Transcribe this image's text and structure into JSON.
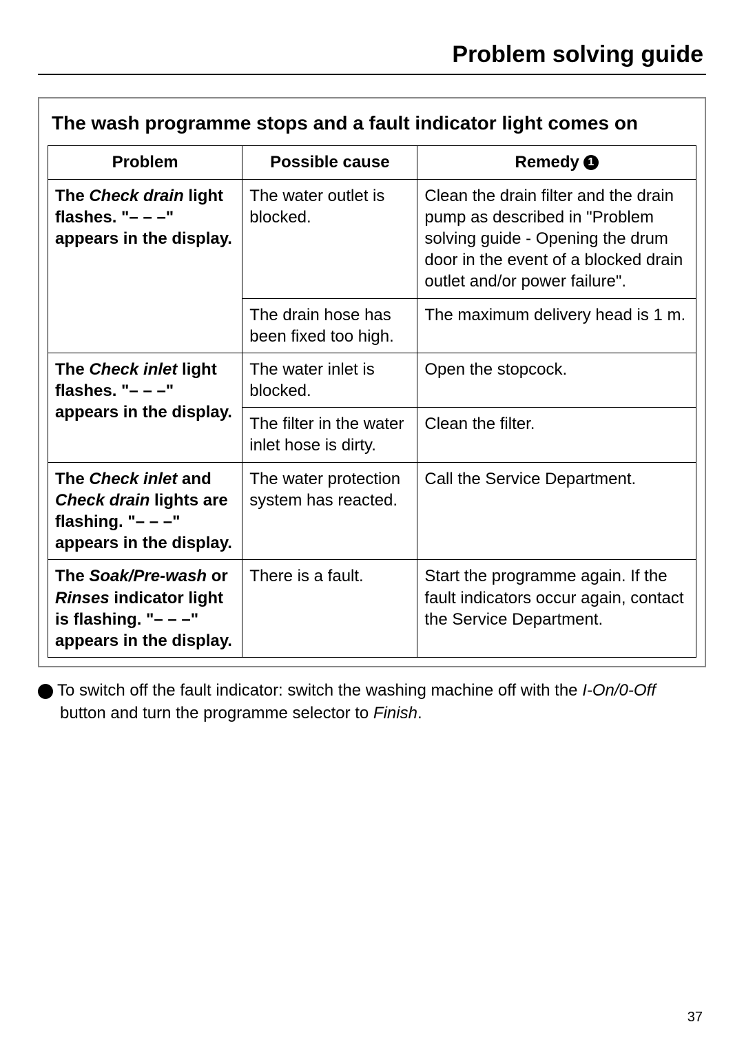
{
  "page_title": "Problem solving guide",
  "section_title": "The wash programme stops and a fault indicator light comes on",
  "headers": {
    "problem": "Problem",
    "cause": "Possible cause",
    "remedy": "Remedy",
    "remedy_marker": "1"
  },
  "rows": {
    "r1": {
      "problem_pre": "The ",
      "problem_em": "Check drain",
      "problem_post": " light flashes. \"– – –\" appears in the display.",
      "cause": "The water outlet is blocked.",
      "remedy": "Clean the drain filter and the drain pump as described in \"Problem solving guide - Opening the drum door in the event of a blocked drain outlet and/or power failure\"."
    },
    "r2": {
      "cause": "The drain hose has been fixed too high.",
      "remedy": "The maximum delivery head is 1 m."
    },
    "r3": {
      "problem_pre": "The ",
      "problem_em": "Check inlet",
      "problem_post": " light flashes. \"– – –\" appears in the display.",
      "cause": "The water inlet is blocked.",
      "remedy": "Open the stopcock."
    },
    "r4": {
      "cause": "The filter in the water inlet hose is dirty.",
      "remedy": "Clean the filter."
    },
    "r5": {
      "problem_pre": "The ",
      "problem_em1": "Check inlet",
      "problem_mid": " and ",
      "problem_em2": "Check drain",
      "problem_post": " lights are flashing. \"– – –\" appears in the display.",
      "cause": "The water protection system has reacted.",
      "remedy": "Call the Service Department."
    },
    "r6": {
      "problem_pre": "The ",
      "problem_em1": "Soak/Pre-wash",
      "problem_mid": " or ",
      "problem_em2": "Rinses",
      "problem_post": " indicator light is flashing. \"– – –\" appears in the display.",
      "cause": "There is a fault.",
      "remedy": "Start the programme again. If the fault indicators occur again, contact the Service Department."
    }
  },
  "footnote": {
    "marker": "1",
    "text_pre": "To switch off the fault indicator: switch the washing machine off with the ",
    "text_em1": "I-On/0-Off",
    "text_mid": " button and turn the programme selector to ",
    "text_em2": "Finish",
    "text_post": "."
  },
  "page_number": "37"
}
